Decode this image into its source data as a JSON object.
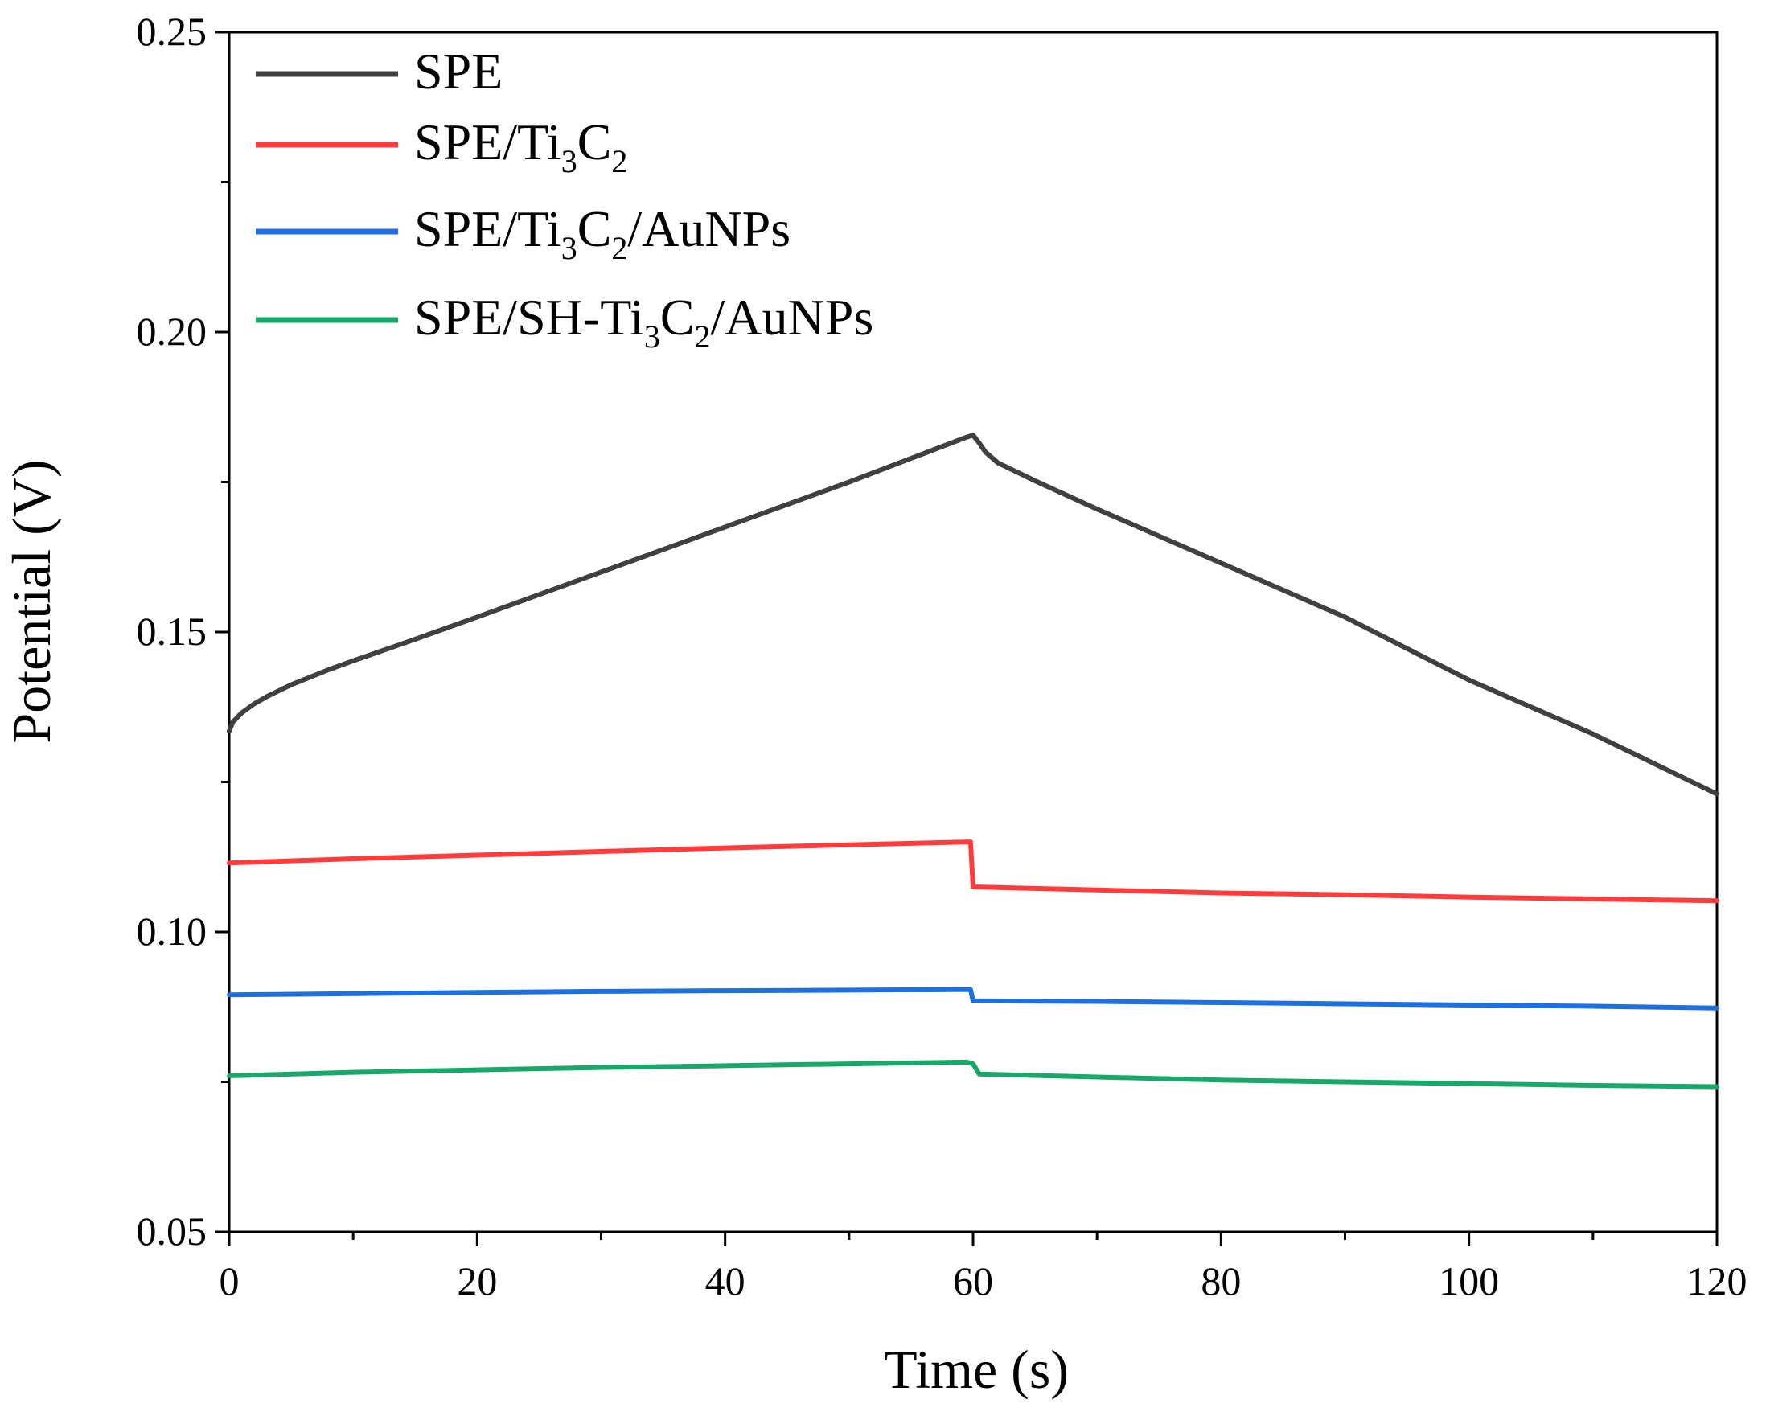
{
  "chart_data": {
    "type": "line",
    "title": "",
    "xlabel": "Time (s)",
    "ylabel": "Potential (V)",
    "xlim": [
      0,
      120
    ],
    "ylim": [
      0.05,
      0.25
    ],
    "x_ticks": [
      0,
      20,
      40,
      60,
      80,
      100,
      120
    ],
    "x_tick_labels": [
      "0",
      "20",
      "40",
      "60",
      "80",
      "100",
      "120"
    ],
    "y_ticks": [
      0.05,
      0.1,
      0.15,
      0.2,
      0.25
    ],
    "y_tick_labels": [
      "0.05",
      "0.10",
      "0.15",
      "0.20",
      "0.25"
    ],
    "grid": false,
    "legend_position": "top-left",
    "series": [
      {
        "name": "SPE",
        "legend_parts": [
          {
            "t": "SPE",
            "sub": false
          }
        ],
        "color": "#404040",
        "points": [
          [
            0,
            0.1335
          ],
          [
            0.3,
            0.135
          ],
          [
            1,
            0.1365
          ],
          [
            2,
            0.138
          ],
          [
            3,
            0.1392
          ],
          [
            5,
            0.1412
          ],
          [
            8,
            0.1437
          ],
          [
            10,
            0.1452
          ],
          [
            15,
            0.1488
          ],
          [
            20,
            0.1525
          ],
          [
            30,
            0.16
          ],
          [
            40,
            0.1675
          ],
          [
            50,
            0.175
          ],
          [
            59.5,
            0.1825
          ],
          [
            60,
            0.1828
          ],
          [
            60.5,
            0.1815
          ],
          [
            61,
            0.18
          ],
          [
            62,
            0.1782
          ],
          [
            65,
            0.1752
          ],
          [
            70,
            0.1705
          ],
          [
            80,
            0.1615
          ],
          [
            90,
            0.1525
          ],
          [
            100,
            0.142
          ],
          [
            110,
            0.133
          ],
          [
            120,
            0.123
          ]
        ]
      },
      {
        "name": "SPE/Ti3C2",
        "legend_parts": [
          {
            "t": "SPE/Ti",
            "sub": false
          },
          {
            "t": "3",
            "sub": true
          },
          {
            "t": "C",
            "sub": false
          },
          {
            "t": "2",
            "sub": true
          }
        ],
        "color": "#ff3b3b",
        "points": [
          [
            0,
            0.1115
          ],
          [
            10,
            0.1122
          ],
          [
            20,
            0.1128
          ],
          [
            30,
            0.1134
          ],
          [
            40,
            0.114
          ],
          [
            50,
            0.1145
          ],
          [
            59.8,
            0.115
          ],
          [
            60,
            0.1075
          ],
          [
            70,
            0.107
          ],
          [
            80,
            0.1065
          ],
          [
            90,
            0.1062
          ],
          [
            100,
            0.1058
          ],
          [
            110,
            0.1055
          ],
          [
            120,
            0.1052
          ]
        ]
      },
      {
        "name": "SPE/Ti3C2/AuNPs",
        "legend_parts": [
          {
            "t": "SPE/Ti",
            "sub": false
          },
          {
            "t": "3",
            "sub": true
          },
          {
            "t": "C",
            "sub": false
          },
          {
            "t": "2",
            "sub": true
          },
          {
            "t": "/AuNPs",
            "sub": false
          }
        ],
        "color": "#1e6fe0",
        "points": [
          [
            0,
            0.0895
          ],
          [
            10,
            0.0897
          ],
          [
            20,
            0.0899
          ],
          [
            30,
            0.0901
          ],
          [
            40,
            0.0902
          ],
          [
            50,
            0.0903
          ],
          [
            59.8,
            0.0904
          ],
          [
            60,
            0.0885
          ],
          [
            70,
            0.0884
          ],
          [
            80,
            0.0882
          ],
          [
            90,
            0.088
          ],
          [
            100,
            0.0878
          ],
          [
            110,
            0.0876
          ],
          [
            120,
            0.0873
          ]
        ]
      },
      {
        "name": "SPE/SH-Ti3C2/AuNPs",
        "legend_parts": [
          {
            "t": "SPE/SH-Ti",
            "sub": false
          },
          {
            "t": "3",
            "sub": true
          },
          {
            "t": "C",
            "sub": false
          },
          {
            "t": "2",
            "sub": true
          },
          {
            "t": "/AuNPs",
            "sub": false
          }
        ],
        "color": "#18a86a",
        "points": [
          [
            0,
            0.076
          ],
          [
            10,
            0.0766
          ],
          [
            20,
            0.077
          ],
          [
            30,
            0.0774
          ],
          [
            40,
            0.0777
          ],
          [
            50,
            0.078
          ],
          [
            59.5,
            0.0783
          ],
          [
            60,
            0.078
          ],
          [
            60.5,
            0.0763
          ],
          [
            70,
            0.0758
          ],
          [
            80,
            0.0753
          ],
          [
            90,
            0.075
          ],
          [
            100,
            0.0747
          ],
          [
            110,
            0.0744
          ],
          [
            120,
            0.0742
          ]
        ]
      }
    ]
  }
}
